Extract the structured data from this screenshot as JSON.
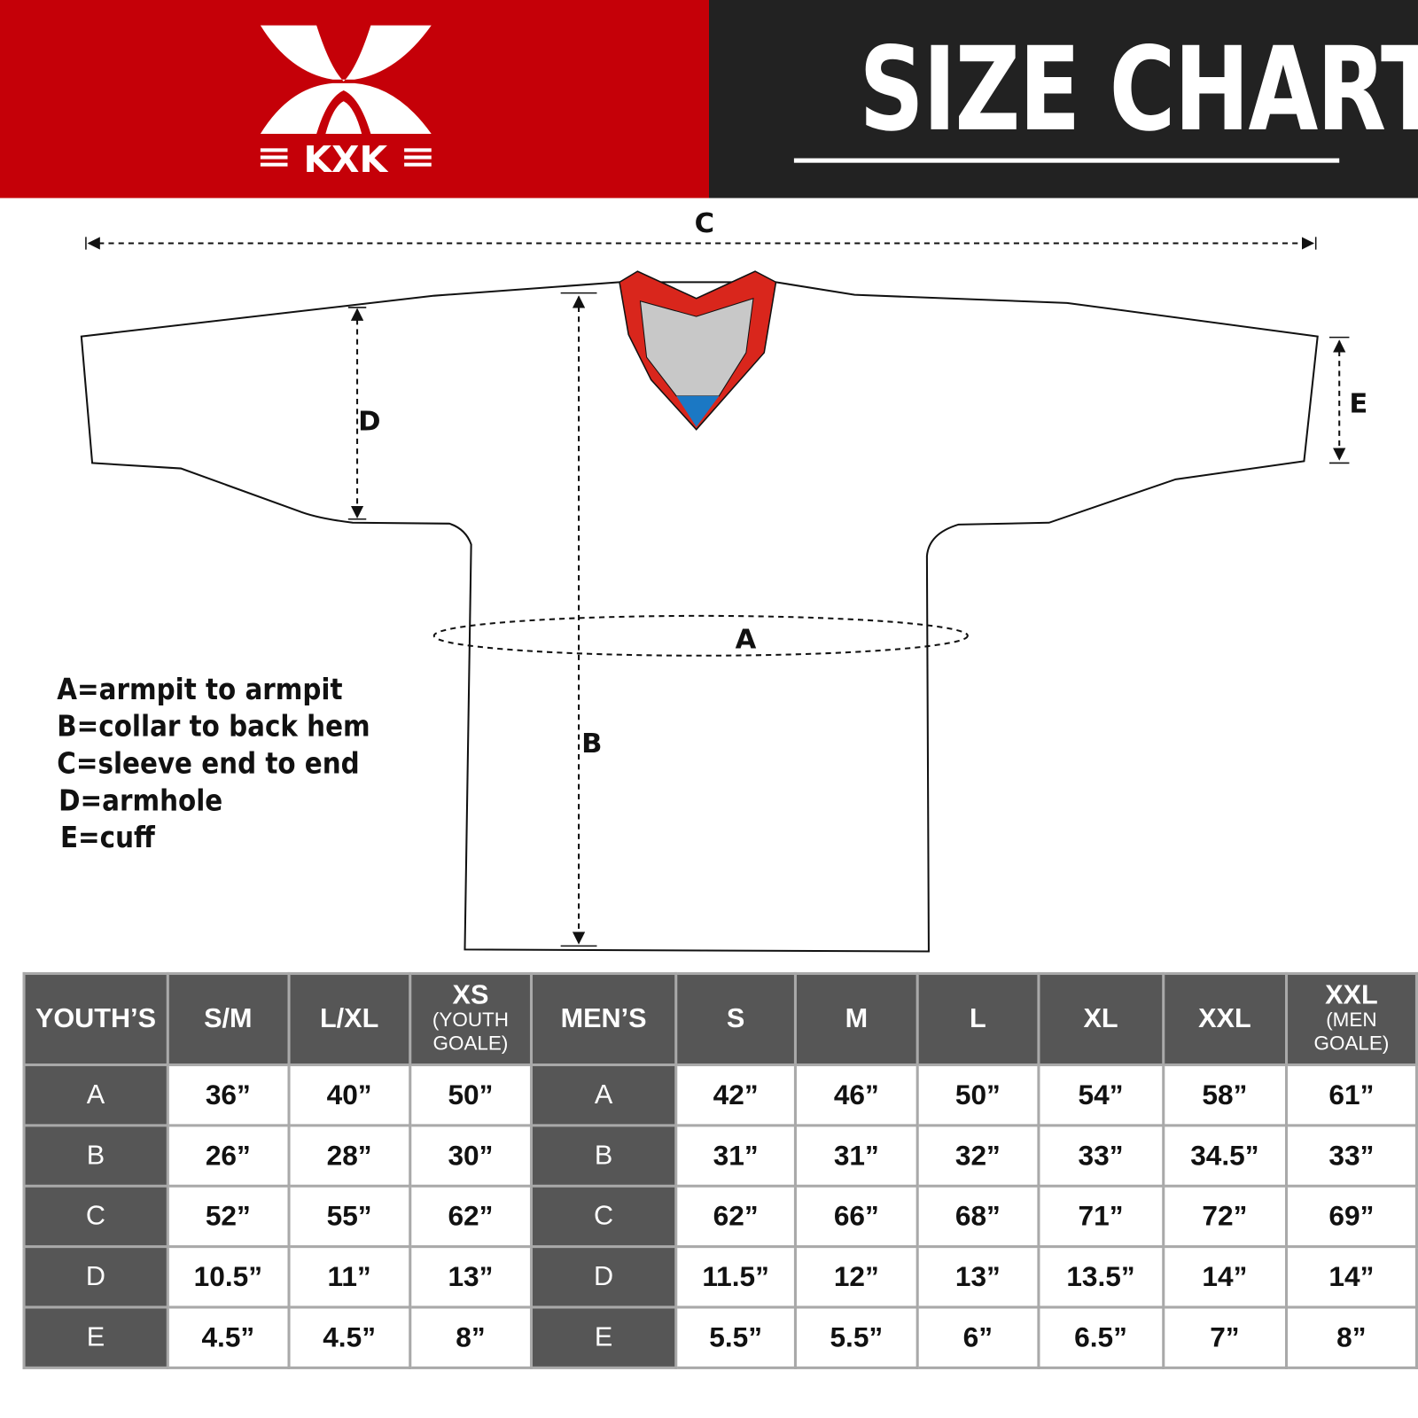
{
  "header": {
    "logo_text": "KXK",
    "title": "SIZE CHART",
    "colors": {
      "brand_red": "#c50008",
      "dark": "#222222",
      "collar_red": "#d9261c",
      "collar_grey": "#c8c8c8",
      "collar_blue": "#1b78c4"
    }
  },
  "diagram": {
    "labels": {
      "a": "A",
      "b": "B",
      "c": "C",
      "d": "D",
      "e": "E"
    }
  },
  "legend": [
    "A=armpit to armpit",
    "B=collar to back hem",
    "C=sleeve end to end",
    "D=armhole",
    "E=cuff"
  ],
  "table": {
    "youth_header": "YOUTH’S",
    "youth_sizes": [
      {
        "main": "S/M",
        "sub": ""
      },
      {
        "main": "L/XL",
        "sub": ""
      },
      {
        "main": "XS",
        "sub": "(YOUTH GOALE)"
      }
    ],
    "men_header": "MEN’S",
    "men_sizes": [
      {
        "main": "S",
        "sub": ""
      },
      {
        "main": "M",
        "sub": ""
      },
      {
        "main": "L",
        "sub": ""
      },
      {
        "main": "XL",
        "sub": ""
      },
      {
        "main": "XXL",
        "sub": ""
      },
      {
        "main": "XXL",
        "sub": "(MEN GOALE)"
      }
    ],
    "rows": [
      {
        "label": "A",
        "youth": [
          "36”",
          "40”",
          "50”"
        ],
        "men": [
          "42”",
          "46”",
          "50”",
          "54”",
          "58”",
          "61”"
        ]
      },
      {
        "label": "B",
        "youth": [
          "26”",
          "28”",
          "30”"
        ],
        "men": [
          "31”",
          "31”",
          "32”",
          "33”",
          "34.5”",
          "33”"
        ]
      },
      {
        "label": "C",
        "youth": [
          "52”",
          "55”",
          "62”"
        ],
        "men": [
          "62”",
          "66”",
          "68”",
          "71”",
          "72”",
          "69”"
        ]
      },
      {
        "label": "D",
        "youth": [
          "10.5”",
          "11”",
          "13”"
        ],
        "men": [
          "11.5”",
          "12”",
          "13”",
          "13.5”",
          "14”",
          "14”"
        ]
      },
      {
        "label": "E",
        "youth": [
          "4.5”",
          "4.5”",
          "8”"
        ],
        "men": [
          "5.5”",
          "5.5”",
          "6”",
          "6.5”",
          "7”",
          "8”"
        ]
      }
    ]
  }
}
